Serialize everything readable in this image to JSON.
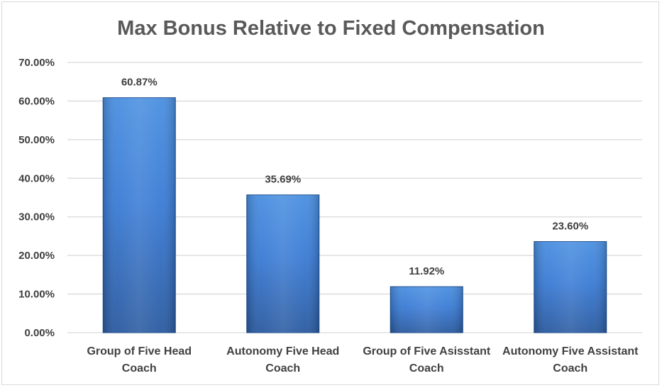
{
  "chart_data": {
    "type": "bar",
    "title": "Max Bonus Relative to Fixed Compensation",
    "xlabel": "",
    "ylabel": "",
    "categories": [
      [
        "Group of Five Head",
        "Coach"
      ],
      [
        "Autonomy Five Head",
        "Coach"
      ],
      [
        "Group of Five Asisstant",
        "Coach"
      ],
      [
        "Autonomy Five Assistant",
        "Coach"
      ]
    ],
    "values": [
      60.87,
      35.69,
      11.92,
      23.6
    ],
    "data_labels": [
      "60.87%",
      "35.69%",
      "11.92%",
      "23.60%"
    ],
    "ylim": [
      0,
      70
    ],
    "yticks": [
      0,
      10,
      20,
      30,
      40,
      50,
      60,
      70
    ],
    "ytick_labels": [
      "0.00%",
      "10.00%",
      "20.00%",
      "30.00%",
      "40.00%",
      "50.00%",
      "60.00%",
      "70.00%"
    ],
    "grid": true,
    "legend": "none",
    "colors": {
      "bar_top": "#4a8fe0",
      "bar_mid": "#3a7bd5",
      "bar_bottom": "#2a5aa0",
      "bar_edge": "#1f4e8c",
      "grid": "#d9d9d9",
      "text": "#404040",
      "title": "#595959"
    }
  }
}
